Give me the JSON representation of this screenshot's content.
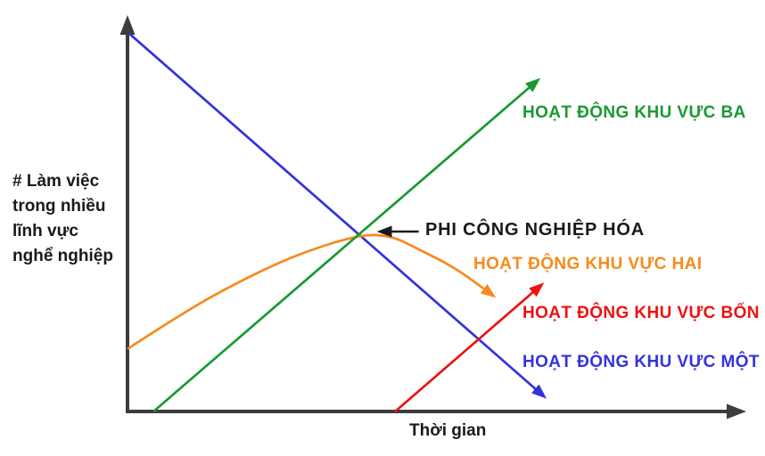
{
  "chart_data": {
    "type": "line",
    "title": "",
    "xlabel": "Thời gian",
    "ylabel": "# Làm việc trong nhiều lĩnh vực nghể nghiệp",
    "ylabel_lines": [
      "# Làm việc",
      "trong nhiều",
      "lĩnh vực",
      "nghể nghiệp"
    ],
    "x_range": [
      0,
      1
    ],
    "y_range": [
      0,
      1
    ],
    "grid": false,
    "legend_position": "labels placed beside each line's arrow end",
    "colors": {
      "axis": "#3d3d3d",
      "text": "#1a1a1a",
      "annotation": "#1a1a1a",
      "background": "#ffffff"
    },
    "series": [
      {
        "name": "sector-one",
        "label": "HOẠT ĐỘNG KHU VỰC MỘT",
        "color": "#3333dd",
        "trend": "steady decline from top-left, arrow ends pointing down-right",
        "points": [
          [
            0.003,
            0.949
          ],
          [
            0.672,
            0.038
          ]
        ]
      },
      {
        "name": "sector-two",
        "label": "HOẠT ĐỘNG KHU VỰC HAI",
        "color": "#f78a1d",
        "trend": "rises to a peak near the line crossing then declines (inverted U), arrow ends pointing down-right",
        "points": [
          [
            0.0,
            0.157
          ],
          [
            0.096,
            0.255
          ],
          [
            0.197,
            0.34
          ],
          [
            0.283,
            0.4
          ],
          [
            0.377,
            0.445
          ],
          [
            0.427,
            0.441
          ],
          [
            0.47,
            0.407
          ],
          [
            0.528,
            0.362
          ],
          [
            0.59,
            0.291
          ]
        ]
      },
      {
        "name": "sector-three",
        "label": "HOẠT ĐỘNG KHU VỰC BA",
        "color": "#189a32",
        "trend": "steady rise from the time axis, arrow ends pointing up-right",
        "points": [
          [
            0.042,
            0.0
          ],
          [
            0.662,
            0.832
          ]
        ]
      },
      {
        "name": "sector-four",
        "label": "HOẠT ĐỘNG KHU VỰC BỐN",
        "color": "#ee1111",
        "trend": "late rise starting on the time axis, arrow ends pointing up-right",
        "points": [
          [
            0.432,
            0.0
          ],
          [
            0.668,
            0.318
          ]
        ]
      }
    ],
    "annotation": {
      "label": "PHI CÔNG NGHIỆP HÓA",
      "arrow_from": [
        0.47,
        0.452
      ],
      "arrow_to": [
        0.408,
        0.452
      ]
    }
  }
}
